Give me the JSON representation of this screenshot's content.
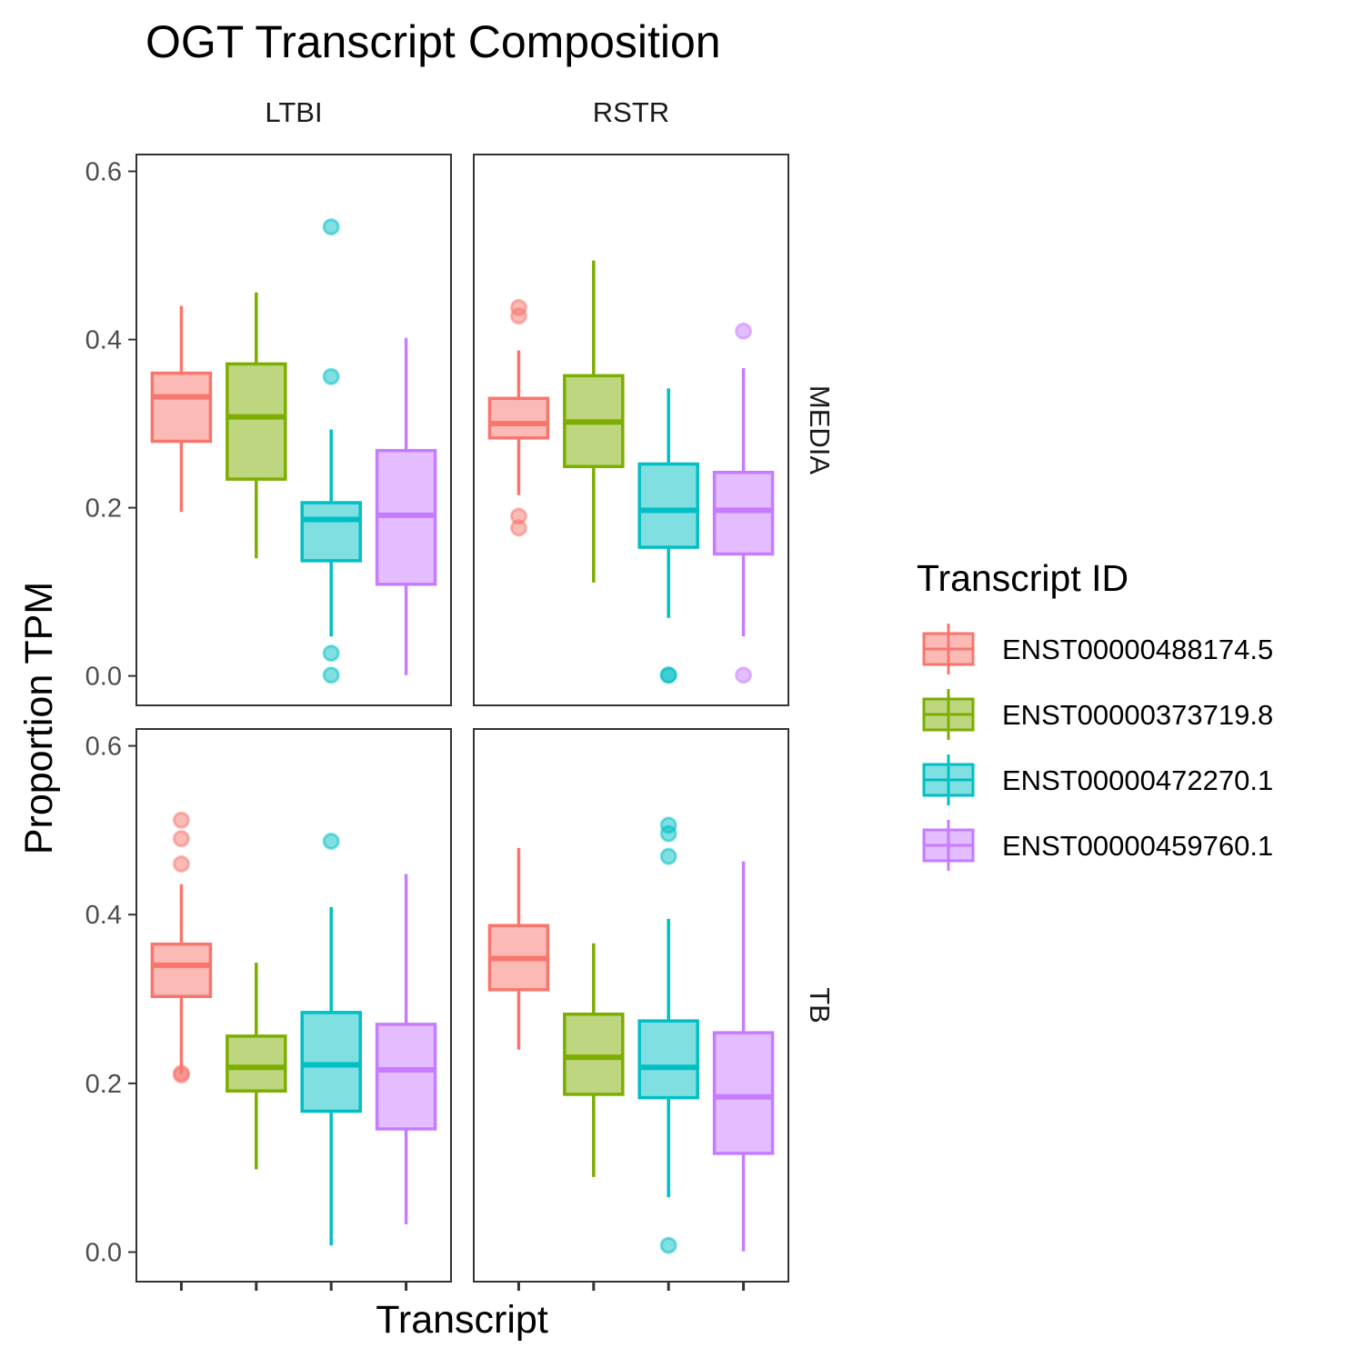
{
  "chart_data": {
    "type": "box",
    "title": "OGT Transcript Composition",
    "xlabel": "Transcript",
    "ylabel": "Proportion TPM",
    "ylim": [
      -0.035,
      0.62
    ],
    "yticks": [
      "0.0",
      "0.2",
      "0.4",
      "0.6"
    ],
    "ytick_values": [
      0,
      0.2,
      0.4,
      0.6
    ],
    "grid": false,
    "legend": {
      "title": "Transcript ID",
      "position": "right",
      "items": [
        "ENST00000488174.5",
        "ENST00000373719.8",
        "ENST00000472270.1",
        "ENST00000459760.1"
      ]
    },
    "colors": {
      "ENST00000488174.5": "#F8766D",
      "ENST00000373719.8": "#7CAE00",
      "ENST00000472270.1": "#00BFC4",
      "ENST00000459760.1": "#C77CFF"
    },
    "facet_cols": [
      "LTBI",
      "RSTR"
    ],
    "facet_rows": [
      "MEDIA",
      "TB"
    ],
    "panels": [
      {
        "row": "MEDIA",
        "col": "LTBI",
        "boxes": [
          {
            "transcript": "ENST00000488174.5",
            "lower_whisker": 0.195,
            "q1": 0.279,
            "median": 0.332,
            "q3": 0.36,
            "upper_whisker": 0.44,
            "outliers": []
          },
          {
            "transcript": "ENST00000373719.8",
            "lower_whisker": 0.14,
            "q1": 0.234,
            "median": 0.308,
            "q3": 0.371,
            "upper_whisker": 0.456,
            "outliers": []
          },
          {
            "transcript": "ENST00000472270.1",
            "lower_whisker": 0.047,
            "q1": 0.137,
            "median": 0.186,
            "q3": 0.206,
            "upper_whisker": 0.293,
            "outliers": [
              0.534,
              0.356,
              0.027,
              0.001
            ]
          },
          {
            "transcript": "ENST00000459760.1",
            "lower_whisker": 0.001,
            "q1": 0.109,
            "median": 0.191,
            "q3": 0.268,
            "upper_whisker": 0.402,
            "outliers": []
          }
        ]
      },
      {
        "row": "MEDIA",
        "col": "RSTR",
        "boxes": [
          {
            "transcript": "ENST00000488174.5",
            "lower_whisker": 0.215,
            "q1": 0.283,
            "median": 0.3,
            "q3": 0.33,
            "upper_whisker": 0.387,
            "outliers": [
              0.438,
              0.428,
              0.19,
              0.176
            ]
          },
          {
            "transcript": "ENST00000373719.8",
            "lower_whisker": 0.111,
            "q1": 0.249,
            "median": 0.302,
            "q3": 0.357,
            "upper_whisker": 0.494,
            "outliers": []
          },
          {
            "transcript": "ENST00000472270.1",
            "lower_whisker": 0.069,
            "q1": 0.153,
            "median": 0.197,
            "q3": 0.252,
            "upper_whisker": 0.342,
            "outliers": [
              0.001,
              0.001
            ]
          },
          {
            "transcript": "ENST00000459760.1",
            "lower_whisker": 0.047,
            "q1": 0.145,
            "median": 0.197,
            "q3": 0.242,
            "upper_whisker": 0.366,
            "outliers": [
              0.41,
              0.001
            ]
          }
        ]
      },
      {
        "row": "TB",
        "col": "LTBI",
        "boxes": [
          {
            "transcript": "ENST00000488174.5",
            "lower_whisker": 0.211,
            "q1": 0.303,
            "median": 0.34,
            "q3": 0.365,
            "upper_whisker": 0.436,
            "outliers": [
              0.512,
              0.49,
              0.46,
              0.212,
              0.21
            ]
          },
          {
            "transcript": "ENST00000373719.8",
            "lower_whisker": 0.098,
            "q1": 0.191,
            "median": 0.219,
            "q3": 0.256,
            "upper_whisker": 0.343,
            "outliers": []
          },
          {
            "transcript": "ENST00000472270.1",
            "lower_whisker": 0.008,
            "q1": 0.167,
            "median": 0.222,
            "q3": 0.284,
            "upper_whisker": 0.409,
            "outliers": [
              0.487
            ]
          },
          {
            "transcript": "ENST00000459760.1",
            "lower_whisker": 0.033,
            "q1": 0.146,
            "median": 0.216,
            "q3": 0.27,
            "upper_whisker": 0.448,
            "outliers": []
          }
        ]
      },
      {
        "row": "TB",
        "col": "RSTR",
        "boxes": [
          {
            "transcript": "ENST00000488174.5",
            "lower_whisker": 0.24,
            "q1": 0.311,
            "median": 0.348,
            "q3": 0.387,
            "upper_whisker": 0.479,
            "outliers": []
          },
          {
            "transcript": "ENST00000373719.8",
            "lower_whisker": 0.089,
            "q1": 0.187,
            "median": 0.231,
            "q3": 0.282,
            "upper_whisker": 0.366,
            "outliers": []
          },
          {
            "transcript": "ENST00000472270.1",
            "lower_whisker": 0.065,
            "q1": 0.183,
            "median": 0.219,
            "q3": 0.274,
            "upper_whisker": 0.395,
            "outliers": [
              0.506,
              0.496,
              0.469,
              0.008
            ]
          },
          {
            "transcript": "ENST00000459760.1",
            "lower_whisker": 0.001,
            "q1": 0.117,
            "median": 0.184,
            "q3": 0.26,
            "upper_whisker": 0.463,
            "outliers": []
          }
        ]
      }
    ]
  }
}
